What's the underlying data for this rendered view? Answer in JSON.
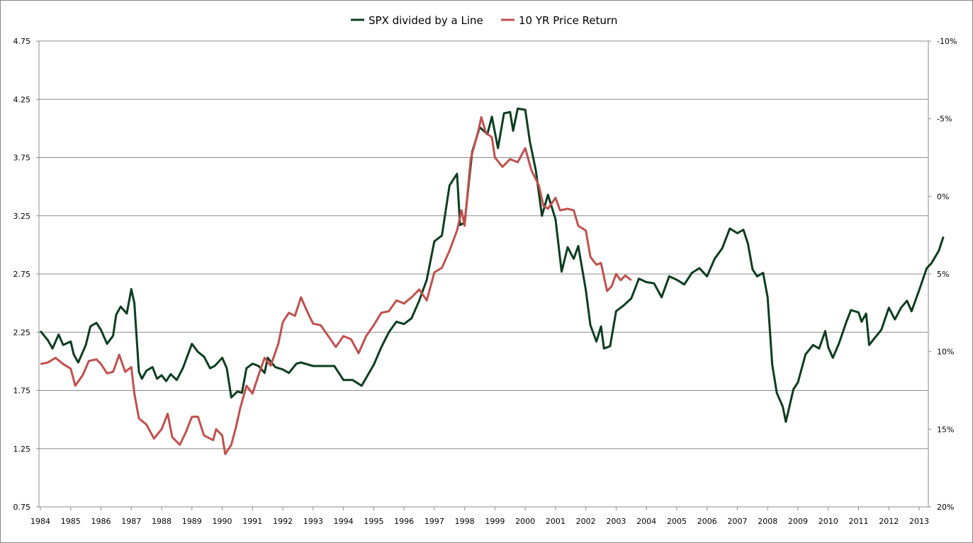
{
  "chart_data": {
    "type": "line",
    "title": "",
    "legend_position": "top",
    "grid": true,
    "x_ticks": [
      "1984",
      "1985",
      "1986",
      "1987",
      "1988",
      "1989",
      "1990",
      "1991",
      "1992",
      "1993",
      "1994",
      "1995",
      "1996",
      "1997",
      "1998",
      "1999",
      "2000",
      "2001",
      "2002",
      "2003",
      "2004",
      "2005",
      "2006",
      "2007",
      "2008",
      "2009",
      "2010",
      "2011",
      "2012",
      "2013"
    ],
    "y_left": {
      "ticks": [
        "0.75",
        "1.25",
        "1.75",
        "2.25",
        "2.75",
        "3.25",
        "3.75",
        "4.25",
        "4.75"
      ],
      "range": [
        0.75,
        4.75
      ]
    },
    "y_right": {
      "ticks": [
        "-10%",
        "-5%",
        "0%",
        "5%",
        "10%",
        "15%",
        "20%"
      ],
      "range": [
        -10,
        20
      ],
      "inverted": true
    },
    "series": [
      {
        "name": "SPX divided by a Line",
        "axis": "left",
        "color": "#0b3d1f",
        "points": [
          [
            1984.0,
            2.26
          ],
          [
            1984.25,
            2.18
          ],
          [
            1984.4,
            2.11
          ],
          [
            1984.6,
            2.23
          ],
          [
            1984.75,
            2.14
          ],
          [
            1985.0,
            2.17
          ],
          [
            1985.1,
            2.06
          ],
          [
            1985.25,
            1.99
          ],
          [
            1985.5,
            2.14
          ],
          [
            1985.65,
            2.3
          ],
          [
            1985.85,
            2.33
          ],
          [
            1986.0,
            2.27
          ],
          [
            1986.2,
            2.15
          ],
          [
            1986.4,
            2.22
          ],
          [
            1986.5,
            2.4
          ],
          [
            1986.65,
            2.47
          ],
          [
            1986.85,
            2.41
          ],
          [
            1987.0,
            2.62
          ],
          [
            1987.1,
            2.5
          ],
          [
            1987.25,
            1.91
          ],
          [
            1987.35,
            1.85
          ],
          [
            1987.5,
            1.92
          ],
          [
            1987.7,
            1.95
          ],
          [
            1987.85,
            1.85
          ],
          [
            1988.0,
            1.88
          ],
          [
            1988.15,
            1.83
          ],
          [
            1988.3,
            1.89
          ],
          [
            1988.5,
            1.84
          ],
          [
            1988.7,
            1.94
          ],
          [
            1989.0,
            2.15
          ],
          [
            1989.2,
            2.08
          ],
          [
            1989.4,
            2.04
          ],
          [
            1989.6,
            1.94
          ],
          [
            1989.75,
            1.96
          ],
          [
            1990.0,
            2.03
          ],
          [
            1990.15,
            1.94
          ],
          [
            1990.3,
            1.69
          ],
          [
            1990.5,
            1.74
          ],
          [
            1990.65,
            1.73
          ],
          [
            1990.8,
            1.94
          ],
          [
            1991.0,
            1.98
          ],
          [
            1991.2,
            1.96
          ],
          [
            1991.4,
            1.9
          ],
          [
            1991.5,
            2.03
          ],
          [
            1991.75,
            1.95
          ],
          [
            1992.0,
            1.93
          ],
          [
            1992.2,
            1.9
          ],
          [
            1992.45,
            1.98
          ],
          [
            1992.6,
            1.99
          ],
          [
            1993.0,
            1.96
          ],
          [
            1993.4,
            1.96
          ],
          [
            1993.7,
            1.96
          ],
          [
            1994.0,
            1.84
          ],
          [
            1994.3,
            1.84
          ],
          [
            1994.6,
            1.79
          ],
          [
            1994.8,
            1.88
          ],
          [
            1995.0,
            1.97
          ],
          [
            1995.25,
            2.12
          ],
          [
            1995.5,
            2.25
          ],
          [
            1995.75,
            2.34
          ],
          [
            1996.0,
            2.32
          ],
          [
            1996.25,
            2.37
          ],
          [
            1996.5,
            2.52
          ],
          [
            1996.75,
            2.7
          ],
          [
            1997.0,
            3.03
          ],
          [
            1997.25,
            3.08
          ],
          [
            1997.5,
            3.51
          ],
          [
            1997.75,
            3.61
          ],
          [
            1997.85,
            3.17
          ],
          [
            1998.0,
            3.19
          ],
          [
            1998.25,
            3.8
          ],
          [
            1998.5,
            4.01
          ],
          [
            1998.75,
            3.95
          ],
          [
            1998.9,
            4.1
          ],
          [
            1999.1,
            3.83
          ],
          [
            1999.3,
            4.13
          ],
          [
            1999.5,
            4.14
          ],
          [
            1999.6,
            3.98
          ],
          [
            1999.75,
            4.17
          ],
          [
            2000.0,
            4.16
          ],
          [
            2000.15,
            3.89
          ],
          [
            2000.35,
            3.64
          ],
          [
            2000.55,
            3.25
          ],
          [
            2000.75,
            3.43
          ],
          [
            2001.0,
            3.22
          ],
          [
            2001.2,
            2.77
          ],
          [
            2001.4,
            2.98
          ],
          [
            2001.6,
            2.88
          ],
          [
            2001.75,
            2.99
          ],
          [
            2002.0,
            2.61
          ],
          [
            2002.15,
            2.31
          ],
          [
            2002.35,
            2.17
          ],
          [
            2002.5,
            2.3
          ],
          [
            2002.6,
            2.11
          ],
          [
            2002.8,
            2.13
          ],
          [
            2003.0,
            2.43
          ],
          [
            2003.25,
            2.48
          ],
          [
            2003.5,
            2.54
          ],
          [
            2003.75,
            2.71
          ],
          [
            2004.0,
            2.68
          ],
          [
            2004.25,
            2.67
          ],
          [
            2004.5,
            2.55
          ],
          [
            2004.75,
            2.73
          ],
          [
            2005.0,
            2.7
          ],
          [
            2005.25,
            2.66
          ],
          [
            2005.5,
            2.76
          ],
          [
            2005.75,
            2.8
          ],
          [
            2006.0,
            2.73
          ],
          [
            2006.25,
            2.88
          ],
          [
            2006.5,
            2.97
          ],
          [
            2006.75,
            3.14
          ],
          [
            2007.0,
            3.1
          ],
          [
            2007.2,
            3.13
          ],
          [
            2007.35,
            3.01
          ],
          [
            2007.5,
            2.79
          ],
          [
            2007.65,
            2.73
          ],
          [
            2007.85,
            2.76
          ],
          [
            2008.0,
            2.55
          ],
          [
            2008.15,
            1.97
          ],
          [
            2008.3,
            1.73
          ],
          [
            2008.5,
            1.61
          ],
          [
            2008.6,
            1.48
          ],
          [
            2008.85,
            1.76
          ],
          [
            2009.0,
            1.82
          ],
          [
            2009.25,
            2.06
          ],
          [
            2009.5,
            2.14
          ],
          [
            2009.7,
            2.11
          ],
          [
            2009.9,
            2.26
          ],
          [
            2010.0,
            2.12
          ],
          [
            2010.15,
            2.03
          ],
          [
            2010.35,
            2.15
          ],
          [
            2010.6,
            2.34
          ],
          [
            2010.75,
            2.44
          ],
          [
            2011.0,
            2.42
          ],
          [
            2011.1,
            2.34
          ],
          [
            2011.25,
            2.41
          ],
          [
            2011.35,
            2.14
          ],
          [
            2011.5,
            2.19
          ],
          [
            2011.75,
            2.27
          ],
          [
            2012.0,
            2.46
          ],
          [
            2012.2,
            2.36
          ],
          [
            2012.4,
            2.46
          ],
          [
            2012.6,
            2.52
          ],
          [
            2012.75,
            2.43
          ],
          [
            2013.0,
            2.61
          ],
          [
            2013.25,
            2.8
          ],
          [
            2013.4,
            2.84
          ],
          [
            2013.65,
            2.95
          ],
          [
            2013.8,
            3.07
          ]
        ]
      },
      {
        "name": "10 YR Price Return",
        "axis": "right",
        "color": "#c0504d",
        "points": [
          [
            1984.0,
            10.8
          ],
          [
            1984.25,
            10.7
          ],
          [
            1984.5,
            10.4
          ],
          [
            1984.75,
            10.8
          ],
          [
            1985.0,
            11.1
          ],
          [
            1985.15,
            12.2
          ],
          [
            1985.4,
            11.5
          ],
          [
            1985.6,
            10.6
          ],
          [
            1985.85,
            10.5
          ],
          [
            1986.0,
            10.8
          ],
          [
            1986.2,
            11.4
          ],
          [
            1986.4,
            11.3
          ],
          [
            1986.6,
            10.2
          ],
          [
            1986.8,
            11.3
          ],
          [
            1987.0,
            11.0
          ],
          [
            1987.1,
            12.7
          ],
          [
            1987.25,
            14.3
          ],
          [
            1987.5,
            14.7
          ],
          [
            1987.75,
            15.6
          ],
          [
            1988.0,
            15.0
          ],
          [
            1988.2,
            14.0
          ],
          [
            1988.35,
            15.5
          ],
          [
            1988.6,
            16.0
          ],
          [
            1988.8,
            15.2
          ],
          [
            1989.0,
            14.2
          ],
          [
            1989.2,
            14.2
          ],
          [
            1989.4,
            15.4
          ],
          [
            1989.7,
            15.7
          ],
          [
            1989.8,
            15.0
          ],
          [
            1990.0,
            15.4
          ],
          [
            1990.1,
            16.6
          ],
          [
            1990.3,
            16.0
          ],
          [
            1990.45,
            14.9
          ],
          [
            1990.6,
            13.6
          ],
          [
            1990.8,
            12.2
          ],
          [
            1991.0,
            12.7
          ],
          [
            1991.2,
            11.5
          ],
          [
            1991.4,
            10.4
          ],
          [
            1991.6,
            10.9
          ],
          [
            1991.85,
            9.5
          ],
          [
            1992.0,
            8.1
          ],
          [
            1992.2,
            7.5
          ],
          [
            1992.4,
            7.7
          ],
          [
            1992.6,
            6.5
          ],
          [
            1992.8,
            7.4
          ],
          [
            1993.0,
            8.2
          ],
          [
            1993.25,
            8.3
          ],
          [
            1993.5,
            9.0
          ],
          [
            1993.75,
            9.7
          ],
          [
            1994.0,
            9.0
          ],
          [
            1994.25,
            9.2
          ],
          [
            1994.5,
            10.1
          ],
          [
            1994.75,
            9.0
          ],
          [
            1995.0,
            8.3
          ],
          [
            1995.25,
            7.5
          ],
          [
            1995.5,
            7.4
          ],
          [
            1995.75,
            6.7
          ],
          [
            1996.0,
            6.9
          ],
          [
            1996.25,
            6.5
          ],
          [
            1996.5,
            6.0
          ],
          [
            1996.75,
            6.7
          ],
          [
            1997.0,
            4.9
          ],
          [
            1997.25,
            4.6
          ],
          [
            1997.5,
            3.5
          ],
          [
            1997.75,
            2.2
          ],
          [
            1997.9,
            0.9
          ],
          [
            1998.0,
            1.9
          ],
          [
            1998.2,
            -2.4
          ],
          [
            1998.45,
            -4.2
          ],
          [
            1998.55,
            -5.1
          ],
          [
            1998.7,
            -4.1
          ],
          [
            1998.9,
            -3.8
          ],
          [
            1999.0,
            -2.5
          ],
          [
            1999.25,
            -1.9
          ],
          [
            1999.5,
            -2.4
          ],
          [
            1999.75,
            -2.2
          ],
          [
            2000.0,
            -3.1
          ],
          [
            2000.2,
            -1.7
          ],
          [
            2000.45,
            -0.7
          ],
          [
            2000.6,
            0.6
          ],
          [
            2000.75,
            0.8
          ],
          [
            2001.0,
            0.1
          ],
          [
            2001.15,
            0.9
          ],
          [
            2001.4,
            0.8
          ],
          [
            2001.6,
            0.9
          ],
          [
            2001.75,
            1.9
          ],
          [
            2002.0,
            2.2
          ],
          [
            2002.15,
            3.9
          ],
          [
            2002.35,
            4.4
          ],
          [
            2002.5,
            4.3
          ],
          [
            2002.7,
            6.1
          ],
          [
            2002.85,
            5.8
          ],
          [
            2003.0,
            5.0
          ],
          [
            2003.15,
            5.4
          ],
          [
            2003.3,
            5.1
          ],
          [
            2003.5,
            5.4
          ]
        ]
      }
    ]
  }
}
